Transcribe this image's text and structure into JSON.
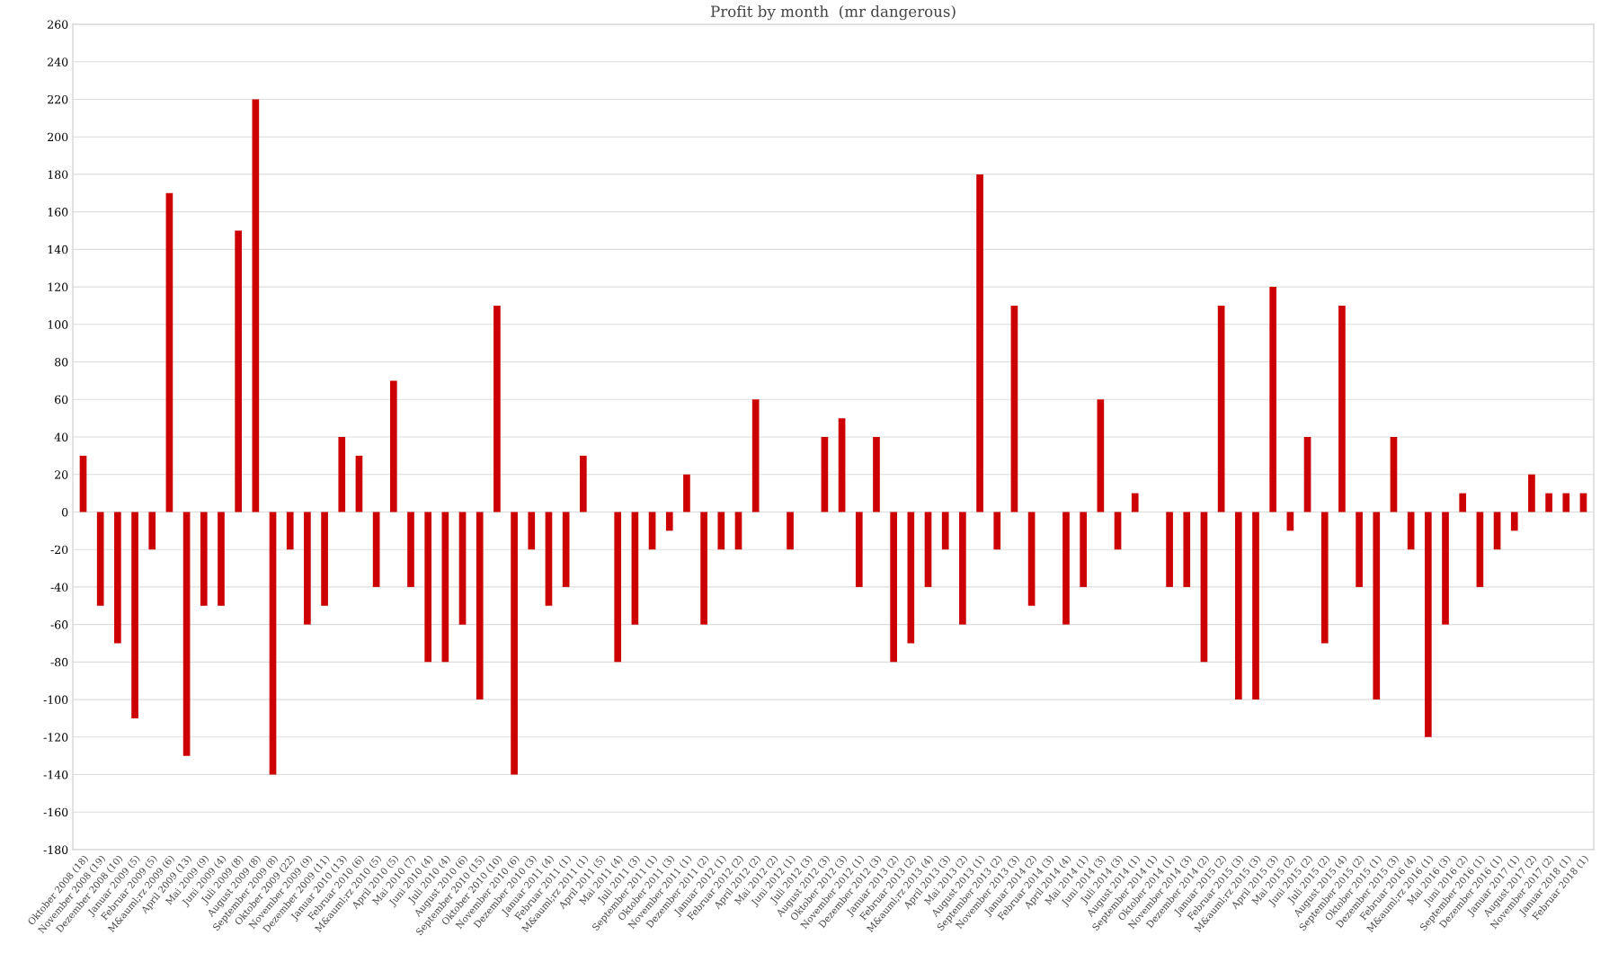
{
  "chart_data": {
    "type": "bar",
    "title": "Profit by month  (mr dangerous)",
    "categories": [
      "Oktober 2008 (18)",
      "November 2008 (19)",
      "Dezember 2008 (10)",
      "Januar 2009 (5)",
      "Februar 2009 (5)",
      "M&auml;rz 2009 (6)",
      "April 2009 (13)",
      "Mai 2009 (9)",
      "Juni 2009 (4)",
      "Juli 2009 (8)",
      "August 2009 (8)",
      "September 2009 (8)",
      "Oktober 2009 (22)",
      "November 2009 (9)",
      "Dezember 2009 (11)",
      "Januar 2010 (13)",
      "Februar 2010 (6)",
      "M&auml;rz 2010 (5)",
      "April 2010 (5)",
      "Mai 2010 (7)",
      "Juni 2010 (4)",
      "Juli 2010 (4)",
      "August 2010 (6)",
      "September 2010 (15)",
      "Oktober 2010 (10)",
      "November 2010 (6)",
      "Dezember 2010 (3)",
      "Januar 2011 (4)",
      "Februar 2011 (1)",
      "M&auml;rz 2011 (1)",
      "April 2011 (5)",
      "Mai 2011 (4)",
      "Juli 2011 (3)",
      "September 2011 (1)",
      "Oktober 2011 (3)",
      "November 2011 (1)",
      "Dezember 2011 (2)",
      "Januar 2012 (1)",
      "Februar 2012 (2)",
      "April 2012 (2)",
      "Mai 2012 (2)",
      "Juni 2012 (1)",
      "Juli 2012 (3)",
      "August 2012 (3)",
      "Oktober 2012 (3)",
      "November 2012 (1)",
      "Dezember 2012 (3)",
      "Januar 2013 (2)",
      "Februar 2013 (2)",
      "M&auml;rz 2013 (4)",
      "April 2013 (3)",
      "Mai 2013 (2)",
      "August 2013 (1)",
      "September 2013 (2)",
      "November 2013 (3)",
      "Januar 2014 (2)",
      "Februar 2014 (3)",
      "April 2014 (4)",
      "Mai 2014 (1)",
      "Juni 2014 (3)",
      "Juli 2014 (3)",
      "August 2014 (1)",
      "September 2014 (1)",
      "Oktober 2014 (1)",
      "November 2014 (3)",
      "Dezember 2014 (2)",
      "Januar 2015 (2)",
      "Februar 2015 (3)",
      "M&auml;rz 2015 (3)",
      "April 2015 (3)",
      "Mai 2015 (2)",
      "Juni 2015 (2)",
      "Juli 2015 (2)",
      "August 2015 (4)",
      "September 2015 (2)",
      "Oktober 2015 (1)",
      "Dezember 2015 (3)",
      "Februar 2016 (4)",
      "M&auml;rz 2016 (1)",
      "Mai 2016 (3)",
      "Juni 2016 (2)",
      "September 2016 (1)",
      "Dezember 2016 (1)",
      "Januar 2017 (1)",
      "August 2017 (2)",
      "November 2017 (2)",
      "Januar 2018 (1)",
      "Februar 2018 (1)"
    ],
    "values": [
      30,
      -50,
      -70,
      -110,
      -20,
      170,
      -130,
      -50,
      -50,
      150,
      220,
      -140,
      -20,
      -60,
      -50,
      40,
      30,
      -40,
      70,
      -40,
      -80,
      -80,
      -60,
      -100,
      110,
      -140,
      -20,
      -50,
      -40,
      30,
      0,
      -80,
      -60,
      -20,
      -10,
      20,
      -60,
      -20,
      -20,
      60,
      0,
      -20,
      0,
      40,
      50,
      -40,
      40,
      -80,
      -70,
      -40,
      -20,
      -60,
      180,
      -20,
      110,
      -50,
      0,
      -60,
      -40,
      60,
      -20,
      10,
      0,
      -40,
      -40,
      -80,
      110,
      -100,
      -100,
      120,
      -10,
      40,
      -70,
      110,
      -40,
      -100,
      40,
      -20,
      -120,
      -60,
      10,
      -40,
      -20,
      -10,
      20,
      10,
      10,
      10
    ],
    "color": "#cc0000",
    "ylim": [
      -180,
      260
    ],
    "yticks": [
      -180,
      -160,
      -140,
      -120,
      -100,
      -80,
      -60,
      -40,
      -20,
      0,
      20,
      40,
      60,
      80,
      100,
      120,
      140,
      160,
      180,
      200,
      220,
      240,
      260
    ],
    "grid": "y",
    "legend": false
  }
}
